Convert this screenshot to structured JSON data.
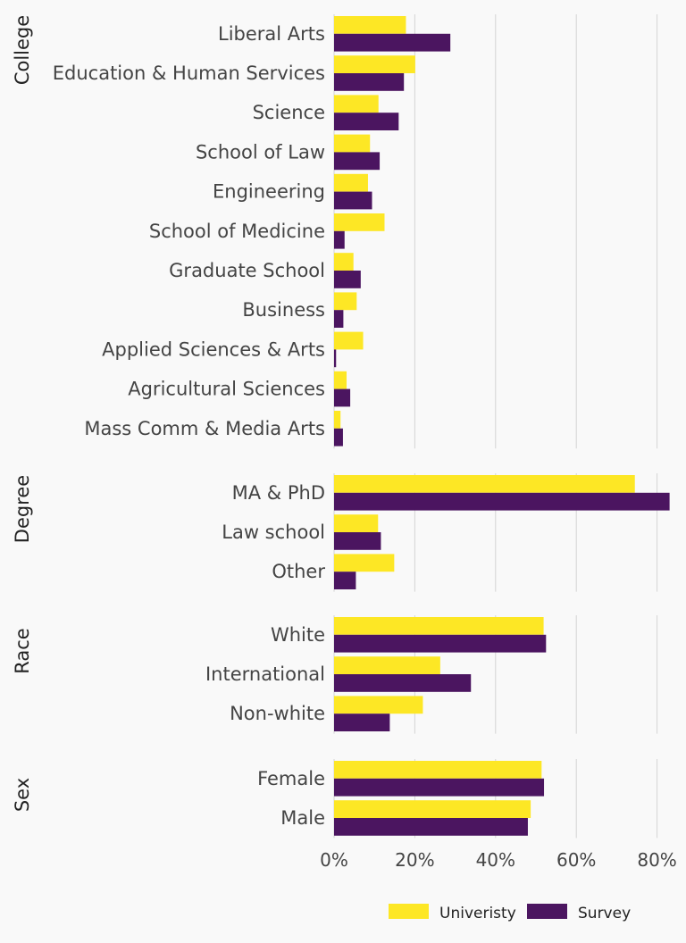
{
  "chart_data": {
    "type": "bar",
    "orientation": "horizontal",
    "xlabel": "",
    "ylabel": "",
    "xlim": [
      0,
      83
    ],
    "x_ticks": [
      0,
      20,
      40,
      60,
      80
    ],
    "x_tick_labels": [
      "0%",
      "20%",
      "40%",
      "60%",
      "80%"
    ],
    "grid": true,
    "legend": {
      "position": "bottom-right",
      "entries": [
        {
          "name": "Univeristy",
          "color": "#fde725"
        },
        {
          "name": "Survey",
          "color": "#4b1560"
        }
      ]
    },
    "series_names": [
      "Univeristy",
      "Survey"
    ],
    "facets": [
      {
        "name": "College",
        "categories": [
          "Liberal Arts",
          "Education & Human Services",
          "Science",
          "School of Law",
          "Engineering",
          "School of Medicine",
          "Graduate School",
          "Business",
          "Applied Sciences & Arts",
          "Agricultural Sciences",
          "Mass Comm & Media Arts"
        ],
        "series": [
          {
            "name": "Univeristy",
            "values": [
              17.8,
              20.1,
              11.0,
              8.9,
              8.4,
              12.5,
              4.8,
              5.6,
              7.2,
              3.1,
              1.6
            ]
          },
          {
            "name": "Survey",
            "values": [
              28.8,
              17.3,
              16.0,
              11.3,
              9.4,
              2.6,
              6.6,
              2.3,
              0.5,
              4.0,
              2.2
            ]
          }
        ]
      },
      {
        "name": "Degree",
        "categories": [
          "MA & PhD",
          "Law school",
          "Other"
        ],
        "series": [
          {
            "name": "Univeristy",
            "values": [
              74.5,
              10.9,
              14.9
            ]
          },
          {
            "name": "Survey",
            "values": [
              83.1,
              11.6,
              5.4
            ]
          }
        ]
      },
      {
        "name": "Race",
        "categories": [
          "White",
          "International",
          "Non-white"
        ],
        "series": [
          {
            "name": "Univeristy",
            "values": [
              51.9,
              26.3,
              22.0
            ]
          },
          {
            "name": "Survey",
            "values": [
              52.5,
              33.9,
              13.8
            ]
          }
        ]
      },
      {
        "name": "Sex",
        "categories": [
          "Female",
          "Male"
        ],
        "series": [
          {
            "name": "Univeristy",
            "values": [
              51.4,
              48.7
            ]
          },
          {
            "name": "Survey",
            "values": [
              52.0,
              48.0
            ]
          }
        ]
      }
    ]
  }
}
